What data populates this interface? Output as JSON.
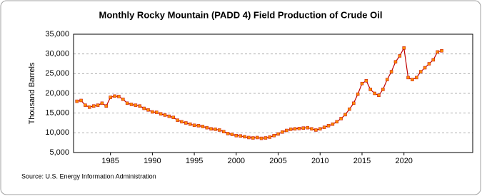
{
  "chart_data": {
    "type": "line",
    "title": "Monthly Rocky Mountain (PADD 4) Field Production of Crude Oil",
    "ylabel": "Thousand Barrels",
    "source": "Source: U.S. Energy Information Administration",
    "x": [
      1981.0,
      1981.5,
      1982.0,
      1982.5,
      1983.0,
      1983.5,
      1984.0,
      1984.5,
      1985.0,
      1985.5,
      1986.0,
      1986.5,
      1987.0,
      1987.5,
      1988.0,
      1988.5,
      1989.0,
      1989.5,
      1990.0,
      1990.5,
      1991.0,
      1991.5,
      1992.0,
      1992.5,
      1993.0,
      1993.5,
      1994.0,
      1994.5,
      1995.0,
      1995.5,
      1996.0,
      1996.5,
      1997.0,
      1997.5,
      1998.0,
      1998.5,
      1999.0,
      1999.5,
      2000.0,
      2000.5,
      2001.0,
      2001.5,
      2002.0,
      2002.5,
      2003.0,
      2003.5,
      2004.0,
      2004.5,
      2005.0,
      2005.5,
      2006.0,
      2006.5,
      2007.0,
      2007.5,
      2008.0,
      2008.5,
      2009.0,
      2009.5,
      2010.0,
      2010.5,
      2011.0,
      2011.5,
      2012.0,
      2012.5,
      2013.0,
      2013.5,
      2014.0,
      2014.5,
      2015.0,
      2015.5,
      2016.0,
      2016.5,
      2017.0,
      2017.5,
      2018.0,
      2018.5,
      2019.0,
      2019.5,
      2020.0,
      2020.5,
      2021.0,
      2021.5,
      2022.0,
      2022.5,
      2023.0,
      2023.5,
      2024.0,
      2024.5
    ],
    "series": [
      {
        "name": "Field Production of Crude Oil",
        "color": "#c00000",
        "marker_color": "#ff8c00",
        "values": [
          18000,
          18200,
          17000,
          16500,
          16800,
          17000,
          17500,
          16800,
          19000,
          19300,
          19200,
          18500,
          17500,
          17200,
          17000,
          16800,
          16200,
          15800,
          15300,
          15200,
          14800,
          14500,
          14200,
          13900,
          13200,
          12800,
          12500,
          12200,
          11900,
          11800,
          11600,
          11300,
          11000,
          10900,
          10700,
          10300,
          9800,
          9600,
          9300,
          9200,
          9000,
          8800,
          8700,
          8800,
          8600,
          8700,
          8900,
          9300,
          9700,
          10200,
          10600,
          10900,
          11000,
          11100,
          11200,
          11300,
          11000,
          10700,
          11000,
          11400,
          11800,
          12200,
          12800,
          13600,
          14600,
          16000,
          17500,
          19800,
          22500,
          23200,
          21000,
          20000,
          19500,
          21000,
          23500,
          25500,
          28000,
          29500,
          31500,
          24000,
          23500,
          24000,
          25500,
          26500,
          27500,
          28500,
          30500,
          30800
        ]
      }
    ],
    "xlim": [
      1980.6,
      2028.2
    ],
    "xticks": [
      1985,
      1990,
      1995,
      2000,
      2005,
      2010,
      2015,
      2020
    ],
    "ylim": [
      5000,
      35000
    ],
    "yticks": [
      {
        "value": 5000,
        "label": "5,000"
      },
      {
        "value": 10000,
        "label": "10,000"
      },
      {
        "value": 15000,
        "label": "15,000"
      },
      {
        "value": 20000,
        "label": "20,000"
      },
      {
        "value": 25000,
        "label": "25,000"
      },
      {
        "value": 30000,
        "label": "30,000"
      },
      {
        "value": 35000,
        "label": "35,000"
      }
    ],
    "grid": true
  }
}
